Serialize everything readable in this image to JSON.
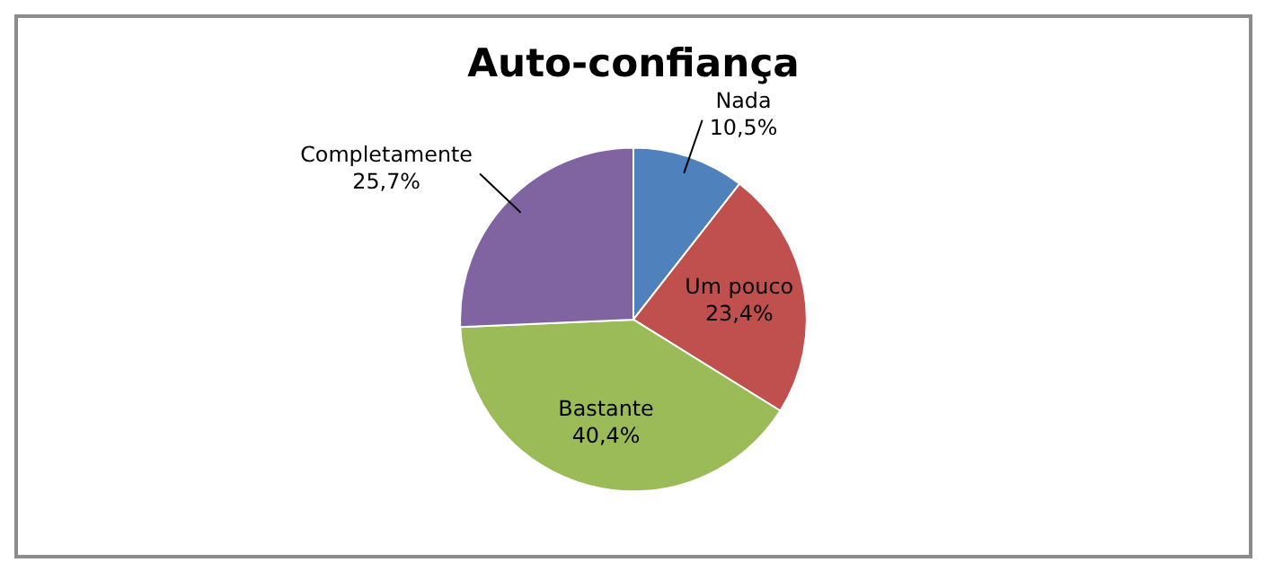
{
  "chart_data": {
    "type": "pie",
    "title": "Auto-confiança",
    "categories": [
      "Nada",
      "Um pouco",
      "Bastante",
      "Completamente"
    ],
    "values": [
      10.5,
      23.4,
      40.4,
      25.7
    ],
    "value_labels": [
      "10,5%",
      "23,4%",
      "40,4%",
      "25,7%"
    ],
    "colors": [
      "#4f81bd",
      "#c0504d",
      "#9bbb59",
      "#8064a2"
    ],
    "legend": false
  }
}
